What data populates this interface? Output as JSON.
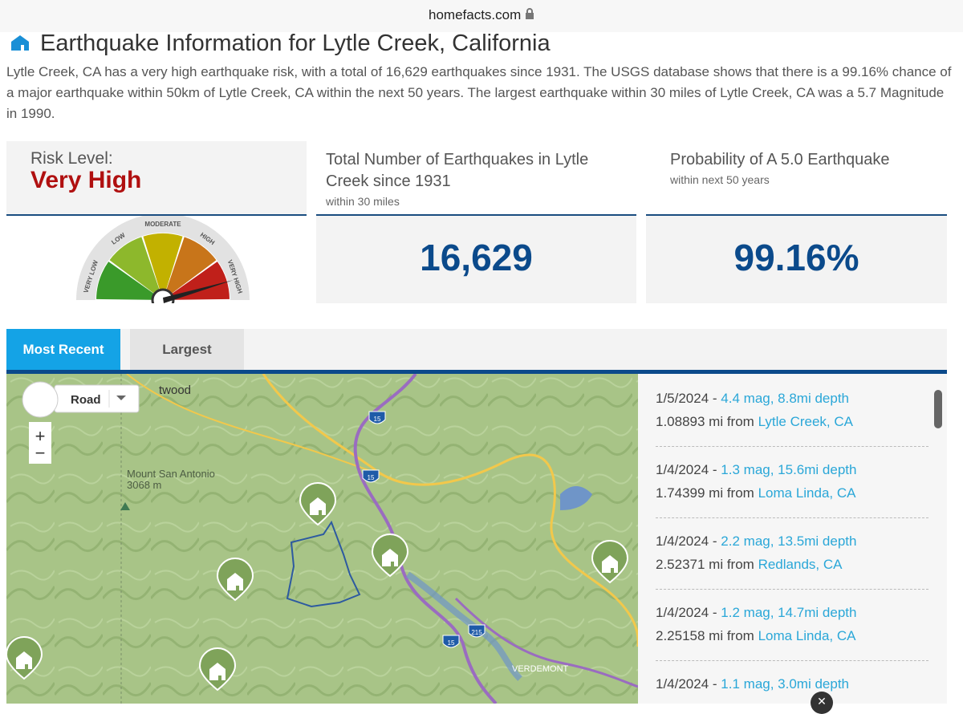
{
  "browser": {
    "url": "homefacts.com"
  },
  "header": {
    "title": "Earthquake Information for Lytle Creek, California",
    "description": "Lytle Creek, CA has a very high earthquake risk, with a total of 16,629 earthquakes since 1931. The USGS database shows that there is a 99.16% chance of a major earthquake within 50km of Lytle Creek, CA within the next 50 years. The largest earthquake within 30 miles of Lytle Creek, CA was a 5.7 Magnitude in 1990."
  },
  "cards": [
    {
      "label": "Risk Level:",
      "value": "Very High",
      "gauge_labels": [
        "VERY LOW",
        "LOW",
        "MODERATE",
        "HIGH",
        "VERY HIGH"
      ]
    },
    {
      "title": "Total Number of Earthquakes in Lytle Creek since 1931",
      "subtitle": "within 30 miles",
      "value": "16,629"
    },
    {
      "title": "Probability of A 5.0 Earthquake",
      "subtitle": "within next 50 years",
      "value": "99.16%"
    }
  ],
  "tabs": [
    "Most Recent",
    "Largest"
  ],
  "map": {
    "control": "Road",
    "labels": [
      "twood",
      "Mount San Antonio",
      "3068 m",
      "VERDEMONT"
    ],
    "highways": [
      "15",
      "15",
      "15",
      "215"
    ]
  },
  "quakes": [
    {
      "date": "1/5/2024 -",
      "detail": "4.4 mag, 8.8mi depth",
      "distance": "1.08893 mi from",
      "place": "Lytle Creek, CA"
    },
    {
      "date": "1/4/2024 -",
      "detail": "1.3 mag, 15.6mi depth",
      "distance": "1.74399 mi from",
      "place": "Loma Linda, CA"
    },
    {
      "date": "1/4/2024 -",
      "detail": "2.2 mag, 13.5mi depth",
      "distance": "2.52371 mi from",
      "place": "Redlands, CA"
    },
    {
      "date": "1/4/2024 -",
      "detail": "1.2 mag, 14.7mi depth",
      "distance": "2.25158 mi from",
      "place": "Loma Linda, CA"
    },
    {
      "date": "1/4/2024 -",
      "detail": "1.1 mag, 3.0mi depth"
    }
  ]
}
